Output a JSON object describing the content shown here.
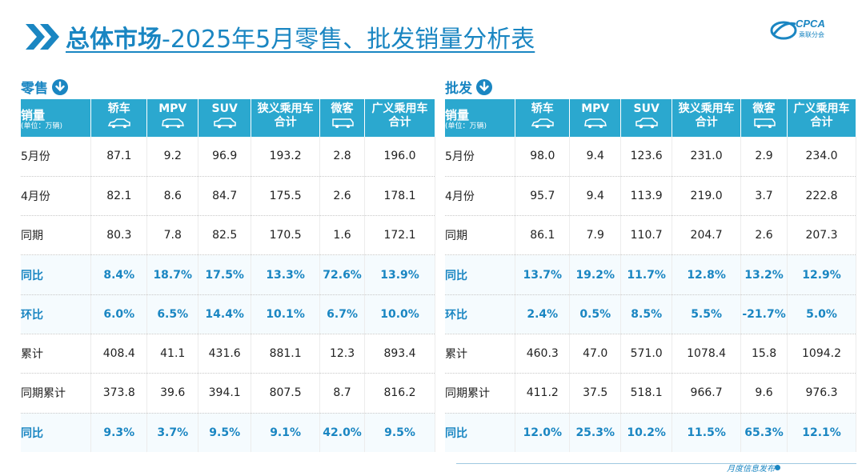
{
  "header": {
    "title_bold": "总体市场",
    "title_rest": "-2025年5月零售、批发销量分析表"
  },
  "logo": {
    "text": "CPCA",
    "sub": "乘联分会"
  },
  "footer": {
    "text": "月度信息发布"
  },
  "colors": {
    "accent": "#1a86c2",
    "header_bg": "#2ba8cf"
  },
  "columns": [
    {
      "label": "销量",
      "unit": "(单位：万辆)"
    },
    {
      "label": "轿车",
      "icon": "sedan-icon"
    },
    {
      "label": "MPV",
      "icon": "mpv-icon"
    },
    {
      "label": "SUV",
      "icon": "suv-icon"
    },
    {
      "label": "狭义乘用车合计"
    },
    {
      "label": "微客",
      "icon": "minivan-icon"
    },
    {
      "label": "广义乘用车合计"
    }
  ],
  "retail": {
    "label": "零售",
    "rows": [
      {
        "label": "5月份",
        "values": [
          "87.1",
          "9.2",
          "96.9",
          "193.2",
          "2.8",
          "196.0"
        ],
        "highlight": false
      },
      {
        "label": "4月份",
        "values": [
          "82.1",
          "8.6",
          "84.7",
          "175.5",
          "2.6",
          "178.1"
        ],
        "highlight": false
      },
      {
        "label": "同期",
        "values": [
          "80.3",
          "7.8",
          "82.5",
          "170.5",
          "1.6",
          "172.1"
        ],
        "highlight": false
      },
      {
        "label": "同比",
        "values": [
          "8.4%",
          "18.7%",
          "17.5%",
          "13.3%",
          "72.6%",
          "13.9%"
        ],
        "highlight": true
      },
      {
        "label": "环比",
        "values": [
          "6.0%",
          "6.5%",
          "14.4%",
          "10.1%",
          "6.7%",
          "10.0%"
        ],
        "highlight": true
      },
      {
        "label": "累计",
        "values": [
          "408.4",
          "41.1",
          "431.6",
          "881.1",
          "12.3",
          "893.4"
        ],
        "highlight": false
      },
      {
        "label": "同期累计",
        "values": [
          "373.8",
          "39.6",
          "394.1",
          "807.5",
          "8.7",
          "816.2"
        ],
        "highlight": false
      },
      {
        "label": "同比",
        "values": [
          "9.3%",
          "3.7%",
          "9.5%",
          "9.1%",
          "42.0%",
          "9.5%"
        ],
        "highlight": true
      }
    ]
  },
  "wholesale": {
    "label": "批发",
    "rows": [
      {
        "label": "5月份",
        "values": [
          "98.0",
          "9.4",
          "123.6",
          "231.0",
          "2.9",
          "234.0"
        ],
        "highlight": false
      },
      {
        "label": "4月份",
        "values": [
          "95.7",
          "9.4",
          "113.9",
          "219.0",
          "3.7",
          "222.8"
        ],
        "highlight": false
      },
      {
        "label": "同期",
        "values": [
          "86.1",
          "7.9",
          "110.7",
          "204.7",
          "2.6",
          "207.3"
        ],
        "highlight": false
      },
      {
        "label": "同比",
        "values": [
          "13.7%",
          "19.2%",
          "11.7%",
          "12.8%",
          "13.2%",
          "12.9%"
        ],
        "highlight": true
      },
      {
        "label": "环比",
        "values": [
          "2.4%",
          "0.5%",
          "8.5%",
          "5.5%",
          "-21.7%",
          "5.0%"
        ],
        "highlight": true
      },
      {
        "label": "累计",
        "values": [
          "460.3",
          "47.0",
          "571.0",
          "1078.4",
          "15.8",
          "1094.2"
        ],
        "highlight": false
      },
      {
        "label": "同期累计",
        "values": [
          "411.2",
          "37.5",
          "518.1",
          "966.7",
          "9.6",
          "976.3"
        ],
        "highlight": false
      },
      {
        "label": "同比",
        "values": [
          "12.0%",
          "25.3%",
          "10.2%",
          "11.5%",
          "65.3%",
          "12.1%"
        ],
        "highlight": true
      }
    ]
  }
}
